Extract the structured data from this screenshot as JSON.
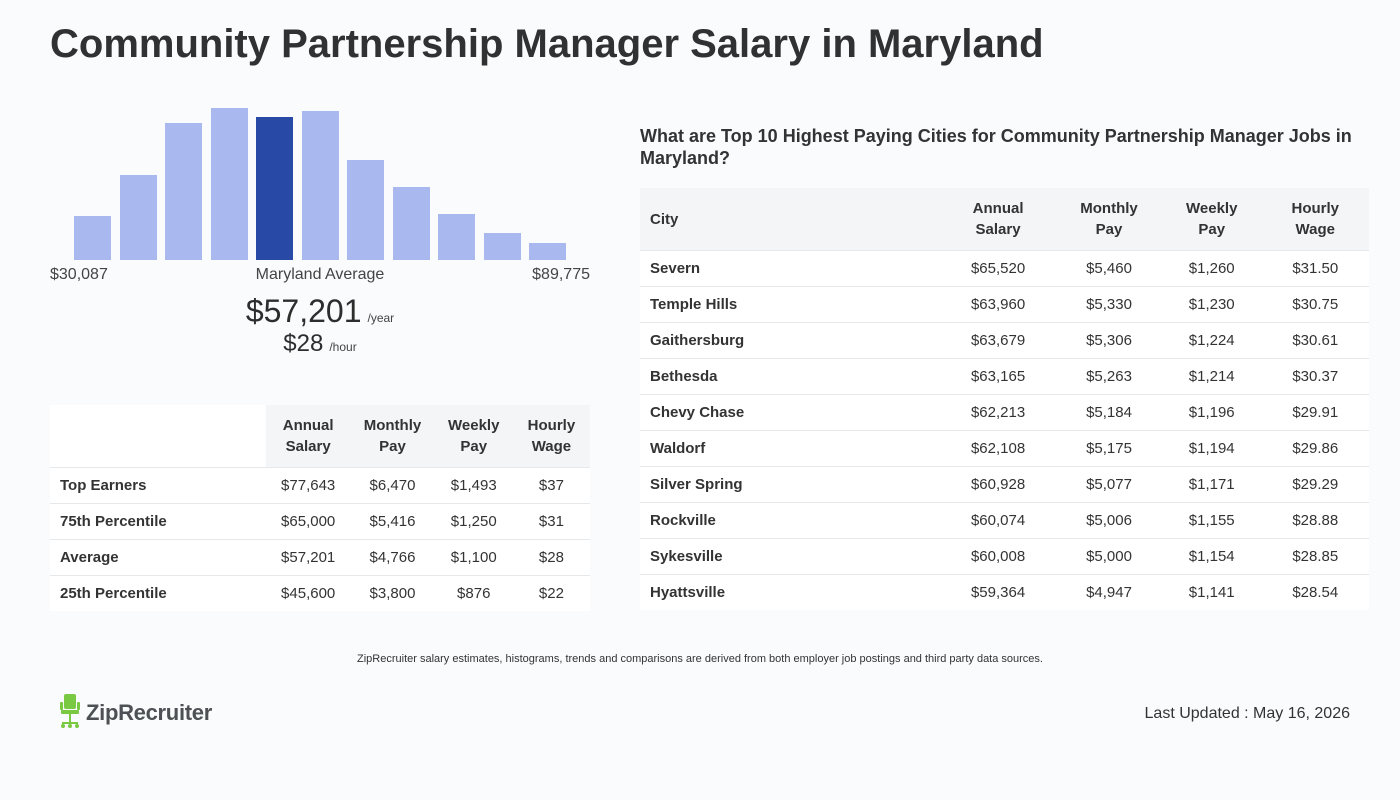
{
  "title": "Community Partnership Manager Salary in Maryland",
  "histogram": {
    "min_label": "$30,087",
    "avg_label": "Maryland Average",
    "max_label": "$89,775",
    "bar_color": "#a9b9f0",
    "highlight_color": "#2849a6",
    "highlight_index": 4,
    "bars": [
      0.29,
      0.56,
      0.9,
      1.0,
      0.94,
      0.98,
      0.66,
      0.48,
      0.3,
      0.18,
      0.11
    ]
  },
  "average": {
    "annual": "$57,201",
    "annual_unit": "/year",
    "hourly": "$28",
    "hourly_unit": "/hour"
  },
  "percentile_table": {
    "headers": [
      "Annual Salary",
      "Monthly Pay",
      "Weekly Pay",
      "Hourly Wage"
    ],
    "rows": [
      {
        "label": "Top Earners",
        "annual": "$77,643",
        "monthly": "$6,470",
        "weekly": "$1,493",
        "hourly": "$37"
      },
      {
        "label": "75th Percentile",
        "annual": "$65,000",
        "monthly": "$5,416",
        "weekly": "$1,250",
        "hourly": "$31"
      },
      {
        "label": "Average",
        "annual": "$57,201",
        "monthly": "$4,766",
        "weekly": "$1,100",
        "hourly": "$28"
      },
      {
        "label": "25th Percentile",
        "annual": "$45,600",
        "monthly": "$3,800",
        "weekly": "$876",
        "hourly": "$22"
      }
    ]
  },
  "cities": {
    "heading": "What are Top 10 Highest Paying Cities for Community Partnership Manager Jobs in Maryland?",
    "headers": [
      "City",
      "Annual Salary",
      "Monthly Pay",
      "Weekly Pay",
      "Hourly Wage"
    ],
    "rows": [
      {
        "city": "Severn",
        "annual": "$65,520",
        "monthly": "$5,460",
        "weekly": "$1,260",
        "hourly": "$31.50"
      },
      {
        "city": "Temple Hills",
        "annual": "$63,960",
        "monthly": "$5,330",
        "weekly": "$1,230",
        "hourly": "$30.75"
      },
      {
        "city": "Gaithersburg",
        "annual": "$63,679",
        "monthly": "$5,306",
        "weekly": "$1,224",
        "hourly": "$30.61"
      },
      {
        "city": "Bethesda",
        "annual": "$63,165",
        "monthly": "$5,263",
        "weekly": "$1,214",
        "hourly": "$30.37"
      },
      {
        "city": "Chevy Chase",
        "annual": "$62,213",
        "monthly": "$5,184",
        "weekly": "$1,196",
        "hourly": "$29.91"
      },
      {
        "city": "Waldorf",
        "annual": "$62,108",
        "monthly": "$5,175",
        "weekly": "$1,194",
        "hourly": "$29.86"
      },
      {
        "city": "Silver Spring",
        "annual": "$60,928",
        "monthly": "$5,077",
        "weekly": "$1,171",
        "hourly": "$29.29"
      },
      {
        "city": "Rockville",
        "annual": "$60,074",
        "monthly": "$5,006",
        "weekly": "$1,155",
        "hourly": "$28.88"
      },
      {
        "city": "Sykesville",
        "annual": "$60,008",
        "monthly": "$5,000",
        "weekly": "$1,154",
        "hourly": "$28.85"
      },
      {
        "city": "Hyattsville",
        "annual": "$59,364",
        "monthly": "$4,947",
        "weekly": "$1,141",
        "hourly": "$28.54"
      }
    ]
  },
  "footer": {
    "disclaimer": "ZipRecruiter salary estimates, histograms, trends and comparisons are derived from both employer job postings and third party data sources.",
    "logo_text": "ZipRecruiter",
    "logo_icon": "chair-icon",
    "logo_color": "#7ac943",
    "last_updated": "Last Updated : May 16, 2026"
  }
}
